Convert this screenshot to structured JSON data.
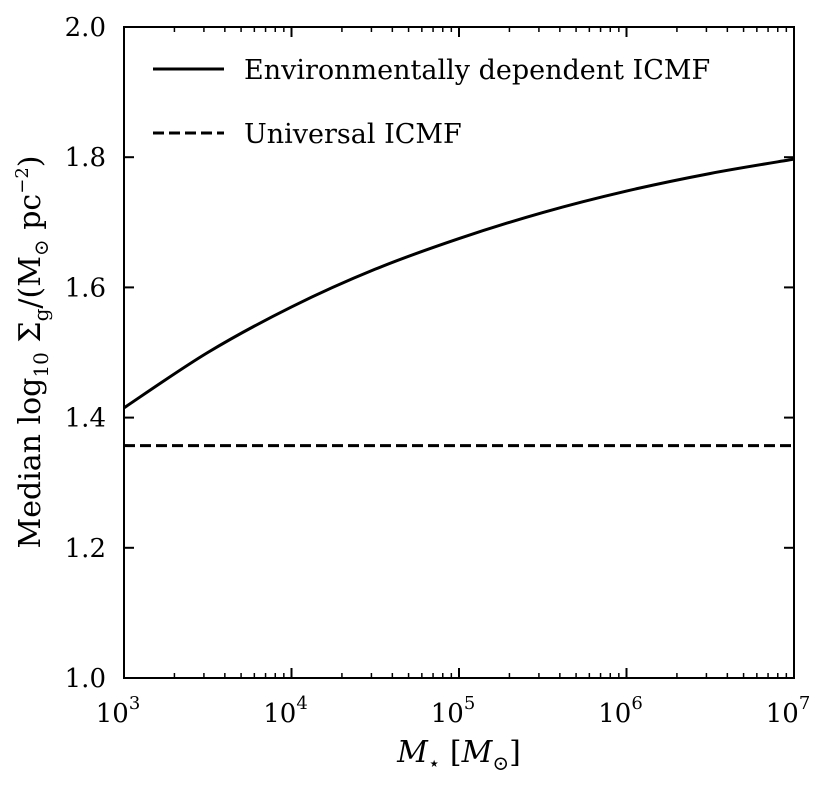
{
  "chart_data": {
    "type": "line",
    "title": "",
    "xlabel": {
      "main": "M",
      "sub": "⋆",
      "unit_open": " [",
      "unit_main": "M",
      "unit_sub": "⊙",
      "unit_close": "]"
    },
    "ylabel": {
      "p1": "Median  log",
      "p1_sub": "10",
      "p2": " Σ",
      "p2_sub": "g",
      "p3": "/(M",
      "p3_sub": "⊙",
      "p4": " pc",
      "p4_sup": "−2",
      "p5": ")"
    },
    "x_scale": "log",
    "xlim_log10": [
      3,
      7
    ],
    "ylim": [
      1.0,
      2.0
    ],
    "x_ticks": [
      {
        "base": "10",
        "exp": "3",
        "log10": 3
      },
      {
        "base": "10",
        "exp": "4",
        "log10": 4
      },
      {
        "base": "10",
        "exp": "5",
        "log10": 5
      },
      {
        "base": "10",
        "exp": "6",
        "log10": 6
      },
      {
        "base": "10",
        "exp": "7",
        "log10": 7
      }
    ],
    "y_ticks": [
      "1.0",
      "1.2",
      "1.4",
      "1.6",
      "1.8",
      "2.0"
    ],
    "legend_position": "top-left",
    "series": [
      {
        "name": "Environmentally dependent ICMF",
        "style": "solid",
        "color": "#000000",
        "x_log10": [
          3.0,
          3.5,
          4.0,
          4.5,
          5.0,
          5.5,
          6.0,
          6.5,
          7.0
        ],
        "y": [
          1.415,
          1.5,
          1.57,
          1.628,
          1.675,
          1.715,
          1.748,
          1.775,
          1.797
        ]
      },
      {
        "name": "Universal ICMF",
        "style": "dashed",
        "color": "#000000",
        "x_log10": [
          3.0,
          7.0
        ],
        "y": [
          1.357,
          1.357
        ]
      }
    ]
  }
}
